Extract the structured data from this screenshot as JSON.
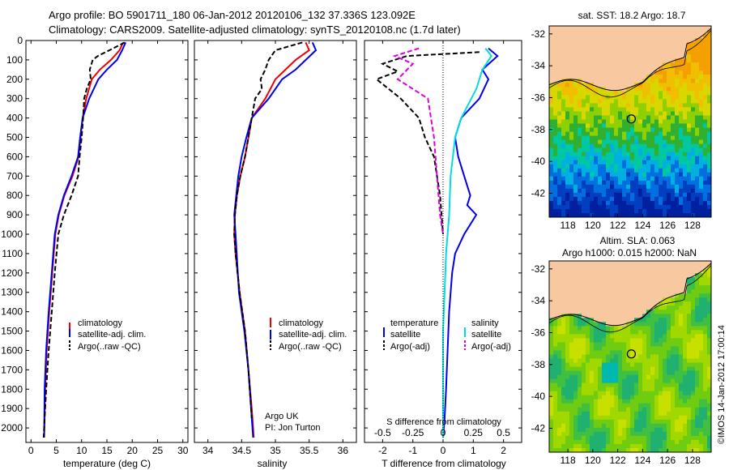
{
  "header": {
    "line1": "Argo profile: BO 5901711_180 06-Jan-2012 20120106_132 37.336S 123.092E",
    "line2": "Climatology: CARS2009. Satellite-adjusted climatology: synTS_20120108.nc (1.7d later)"
  },
  "colors": {
    "climatology": "#ee0000",
    "satellite": "#0000ee",
    "argo": "#000000",
    "sal_satellite": "#00dddd",
    "sal_argo": "#dd00dd",
    "land": "#f8c8a0"
  },
  "chart_data": [
    {
      "type": "line",
      "name": "temperature-profile",
      "xlabel": "temperature (deg C)",
      "ylabel": "",
      "xlim": [
        -1,
        31
      ],
      "ylim": [
        2075,
        0
      ],
      "xticks": [
        "0",
        "5",
        "10",
        "15",
        "20",
        "25",
        "30"
      ],
      "yticks": [
        "0",
        "100",
        "200",
        "300",
        "400",
        "500",
        "600",
        "700",
        "800",
        "900",
        "1000",
        "1100",
        "1200",
        "1300",
        "1400",
        "1500",
        "1600",
        "1700",
        "1800",
        "1900",
        "2000"
      ],
      "legend": [
        "climatology",
        "satellite-adj. clim.",
        "Argo(..raw -QC)"
      ],
      "legend_loc": "lower-center",
      "series": [
        {
          "name": "climatology",
          "style": "solid",
          "color": "climatology",
          "x": [
            18.2,
            17.5,
            15.8,
            13.6,
            12.0,
            10.9,
            10.2,
            9.8,
            9.4,
            8.2,
            6.6,
            5.5,
            4.8,
            4.2,
            3.6,
            3.1,
            2.8,
            2.6
          ],
          "y": [
            10,
            50,
            100,
            150,
            200,
            300,
            400,
            500,
            600,
            700,
            800,
            900,
            1000,
            1200,
            1400,
            1600,
            1800,
            2050
          ]
        },
        {
          "name": "satellite-adj. clim.",
          "style": "solid",
          "color": "satellite",
          "x": [
            18.7,
            18.0,
            17.0,
            15.0,
            13.3,
            11.5,
            10.2,
            9.7,
            9.3,
            8.0,
            6.5,
            5.4,
            4.7,
            4.1,
            3.5,
            3.0,
            2.7,
            2.6
          ],
          "y": [
            10,
            50,
            100,
            150,
            200,
            300,
            400,
            500,
            600,
            700,
            800,
            900,
            1000,
            1200,
            1400,
            1600,
            1800,
            2050
          ]
        },
        {
          "name": "Argo(..raw -QC)",
          "style": "dashed",
          "color": "argo",
          "x": [
            18.5,
            15.5,
            13.2,
            12.2,
            11.6,
            11.8,
            11.0,
            10.5,
            10.3,
            10.0,
            9.6,
            9.3,
            8.0,
            6.5,
            5.4,
            4.7,
            4.1,
            3.5,
            3.0,
            2.7,
            2.5
          ],
          "y": [
            10,
            50,
            80,
            100,
            150,
            200,
            250,
            300,
            400,
            500,
            600,
            700,
            800,
            900,
            1000,
            1200,
            1400,
            1600,
            1800,
            1950,
            2050
          ]
        }
      ]
    },
    {
      "type": "line",
      "name": "salinity-profile",
      "xlabel": "salinity",
      "xlim": [
        33.8,
        36.2
      ],
      "ylim": [
        2075,
        0
      ],
      "xticks": [
        "34",
        "34.5",
        "35",
        "35.5",
        "36"
      ],
      "legend": [
        "climatology",
        "satellite-adj. clim.",
        "Argo(..raw -QC)"
      ],
      "legend_loc": "lower-center",
      "annotation": [
        "Argo UK",
        "PI: Jon Turton"
      ],
      "series": [
        {
          "name": "climatology",
          "style": "solid",
          "color": "climatology",
          "x": [
            35.45,
            35.5,
            35.3,
            35.15,
            35.0,
            34.85,
            34.65,
            34.6,
            34.55,
            34.48,
            34.43,
            34.4,
            34.39,
            34.41,
            34.47,
            34.55,
            34.6,
            34.65,
            34.68
          ],
          "y": [
            10,
            50,
            100,
            150,
            200,
            300,
            400,
            500,
            600,
            700,
            800,
            900,
            1000,
            1100,
            1300,
            1500,
            1700,
            1900,
            2050
          ]
        },
        {
          "name": "satellite-adj. clim.",
          "style": "solid",
          "color": "satellite",
          "x": [
            35.55,
            35.6,
            35.45,
            35.3,
            35.1,
            34.9,
            34.65,
            34.57,
            34.5,
            34.45,
            34.42,
            34.39,
            34.41,
            34.46,
            34.54,
            34.6,
            34.64,
            34.67
          ],
          "y": [
            10,
            50,
            100,
            150,
            200,
            300,
            400,
            500,
            600,
            700,
            800,
            900,
            1000,
            1300,
            1500,
            1700,
            1900,
            2050
          ]
        },
        {
          "name": "Argo(..raw -QC)",
          "style": "dashed",
          "color": "argo",
          "x": [
            35.4,
            35.0,
            34.9,
            34.85,
            34.78,
            34.8,
            34.7,
            34.65,
            34.6,
            34.55,
            34.48,
            34.43,
            34.4,
            34.39,
            34.41,
            34.47,
            34.55,
            34.6,
            34.65
          ],
          "y": [
            10,
            50,
            100,
            150,
            200,
            250,
            300,
            400,
            500,
            600,
            700,
            800,
            900,
            1000,
            1100,
            1300,
            1500,
            1700,
            1950
          ]
        }
      ]
    },
    {
      "type": "line",
      "name": "difference-profile",
      "xlabel": "T difference from climatology",
      "xlabel_top": "S difference from climatology",
      "xlim": [
        -2.6,
        2.6
      ],
      "ylim": [
        2075,
        0
      ],
      "xticks": [
        "-2",
        "-1",
        "0",
        "1",
        "2"
      ],
      "xticks_s": [
        "-0.5",
        "-0.25",
        "0",
        "0.25",
        "0.5"
      ],
      "legend_left_title": "temperature",
      "legend_right_title": "salinity",
      "legend_left": [
        "satellite",
        "Argo(-adj)"
      ],
      "legend_right": [
        "satellite",
        "Argo(-adj)"
      ],
      "series": [
        {
          "name": "temperature satellite",
          "style": "solid",
          "color": "satellite",
          "x": [
            1.5,
            1.8,
            1.3,
            1.5,
            1.2,
            0.6,
            0.4,
            0.5,
            0.7,
            0.9,
            0.8,
            1.1,
            0.7,
            0.4,
            0.3,
            0.2,
            0.15,
            0.1,
            0.05,
            0.0
          ],
          "y": [
            40,
            80,
            150,
            200,
            300,
            400,
            500,
            600,
            700,
            800,
            850,
            900,
            1000,
            1100,
            1200,
            1400,
            1600,
            1800,
            1950,
            2050
          ]
        },
        {
          "name": "temperature Argo(-adj)",
          "style": "dashed",
          "color": "argo",
          "x": [
            1.2,
            -1.2,
            -2.0,
            -1.5,
            -2.2,
            -1.4,
            -0.8,
            -0.6,
            -0.3,
            -0.2,
            -0.1,
            -0.05,
            0.0
          ],
          "y": [
            60,
            80,
            120,
            160,
            200,
            300,
            400,
            500,
            600,
            700,
            800,
            900,
            1000
          ]
        },
        {
          "name": "salinity satellite",
          "style": "solid",
          "color": "sal_satellite",
          "x": [
            1.4,
            1.6,
            1.3,
            1.1,
            0.6,
            0.4,
            0.25,
            0.2,
            0.1,
            0.05,
            0.0,
            0.0,
            0.0
          ],
          "y": [
            40,
            80,
            150,
            250,
            400,
            500,
            700,
            900,
            1100,
            1300,
            1500,
            1800,
            2050
          ]
        },
        {
          "name": "salinity Argo(-adj)",
          "style": "dashed",
          "color": "sal_argo",
          "x": [
            -0.8,
            -1.6,
            -1.0,
            -1.5,
            -0.5,
            -0.3,
            -0.2,
            -0.1,
            0.0
          ],
          "y": [
            40,
            80,
            120,
            200,
            300,
            500,
            700,
            900,
            1000
          ]
        }
      ]
    },
    {
      "type": "heatmap",
      "name": "sst-map",
      "title": "sat. SST: 18.2 Argo: 18.7",
      "xlim": [
        116.5,
        129.5
      ],
      "ylim": [
        -43.5,
        -31.5
      ],
      "xticks": [
        "118",
        "120",
        "122",
        "124",
        "126",
        "128"
      ],
      "yticks": [
        "-32",
        "-34",
        "-36",
        "-38",
        "-40",
        "-42"
      ],
      "marker": {
        "lon": 123.092,
        "lat": -37.336
      }
    },
    {
      "type": "heatmap",
      "name": "sla-map",
      "title": "Altim. SLA: 0.063",
      "subtitle": "Argo h1000: 0.015 h2000: NaN",
      "xlim": [
        116.5,
        129.5
      ],
      "ylim": [
        -43.5,
        -31.5
      ],
      "xticks": [
        "118",
        "120",
        "122",
        "124",
        "126",
        "128"
      ],
      "yticks": [
        "-32",
        "-34",
        "-36",
        "-38",
        "-40",
        "-42"
      ],
      "marker": {
        "lon": 123.092,
        "lat": -37.336
      }
    }
  ],
  "footer": {
    "imos_stamp": "©IMOS 14-Jan-2012 17:00:14"
  }
}
